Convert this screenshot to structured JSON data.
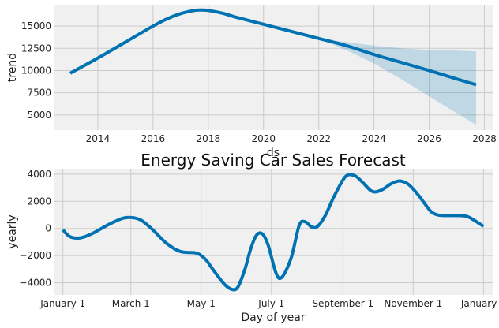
{
  "colors": {
    "line": "#0072B2",
    "band": "#0072B2",
    "panel_bg": "#F0F0F0",
    "grid": "#CBCBCB"
  },
  "chart_data": [
    {
      "type": "line",
      "xlabel": "ds",
      "ylabel": "trend",
      "xlim": [
        2012.4,
        2028.3
      ],
      "ylim": [
        3300,
        17400
      ],
      "xticks": [
        2014,
        2016,
        2018,
        2020,
        2022,
        2024,
        2026,
        2028
      ],
      "xtick_labels": [
        "2014",
        "2016",
        "2018",
        "2020",
        "2022",
        "2024",
        "2026",
        "2028"
      ],
      "yticks": [
        5000,
        7500,
        10000,
        12500,
        15000
      ],
      "ytick_labels": [
        "5000",
        "7500",
        "10000",
        "12500",
        "15000"
      ],
      "grid": true,
      "series": [
        {
          "x": [
            2013,
            2014,
            2015,
            2016,
            2016.5,
            2017,
            2017.5,
            2017.75,
            2018,
            2018.5,
            2019,
            2020,
            2021,
            2022,
            2023,
            2024,
            2025,
            2026,
            2027,
            2027.7
          ],
          "y": [
            9700,
            11400,
            13200,
            15000,
            15800,
            16400,
            16750,
            16800,
            16750,
            16450,
            16000,
            15200,
            14400,
            13600,
            12800,
            11800,
            10900,
            10000,
            9050,
            8400
          ]
        }
      ],
      "band": {
        "x": [
          2022,
          2023,
          2024,
          2025,
          2026,
          2027,
          2027.7
        ],
        "upper": [
          13600,
          13200,
          12800,
          12500,
          12300,
          12250,
          12150
        ],
        "lower": [
          13600,
          12300,
          10800,
          9000,
          7100,
          5200,
          3900
        ]
      }
    },
    {
      "type": "line",
      "title": "Energy Saving Car Sales Forecast",
      "xlabel": "Day of year",
      "ylabel": "yearly",
      "xlim": [
        -8,
        373
      ],
      "ylim": [
        -4900,
        4400
      ],
      "xticks": [
        0,
        59,
        120,
        181,
        243,
        304,
        365
      ],
      "xtick_labels": [
        "January 1",
        "March 1",
        "May 1",
        "July 1",
        "September 1",
        "November 1",
        "January 1"
      ],
      "yticks": [
        -4000,
        -2000,
        0,
        2000,
        4000
      ],
      "ytick_labels": [
        "−4000",
        "−2000",
        "0",
        "2000",
        "4000"
      ],
      "grid": true,
      "series": [
        {
          "x": [
            0,
            6,
            15,
            25,
            40,
            52,
            60,
            68,
            78,
            90,
            102,
            115,
            120,
            125,
            130,
            140,
            147,
            152,
            158,
            163,
            168,
            173,
            178,
            185,
            190,
            198,
            205,
            210,
            216,
            221,
            228,
            235,
            245,
            253,
            260,
            267,
            272,
            278,
            285,
            292,
            299,
            304,
            309,
            316,
            320,
            325,
            330,
            340,
            350,
            357,
            365
          ],
          "y": [
            -100,
            -600,
            -700,
            -400,
            300,
            750,
            800,
            600,
            -100,
            -1100,
            -1700,
            -1800,
            -2000,
            -2400,
            -3000,
            -4100,
            -4500,
            -4300,
            -3000,
            -1500,
            -500,
            -400,
            -1200,
            -3300,
            -3600,
            -2200,
            200,
            500,
            100,
            150,
            1000,
            2300,
            3800,
            3900,
            3400,
            2800,
            2700,
            2900,
            3300,
            3500,
            3300,
            2900,
            2400,
            1600,
            1200,
            1000,
            950,
            950,
            900,
            600,
            150
          ]
        }
      ]
    }
  ]
}
